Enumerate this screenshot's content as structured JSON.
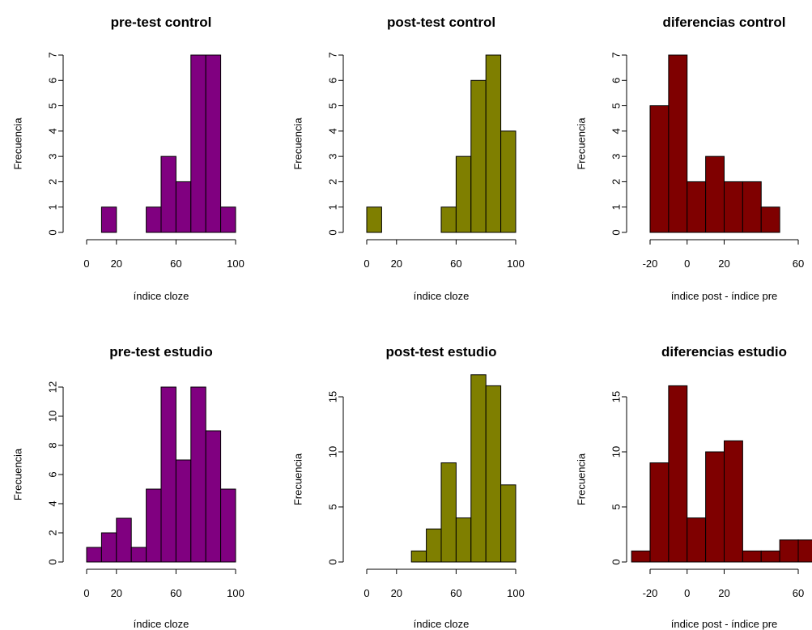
{
  "figure": {
    "colors": {
      "pre": "#800080",
      "post": "#7f7f00",
      "diff": "#7f0000"
    }
  },
  "chart_data": [
    {
      "type": "bar",
      "title": "pre-test control",
      "xlabel": "índice cloze",
      "ylabel": "Frecuencia",
      "color_key": "pre",
      "bin_edges": [
        10,
        20,
        30,
        40,
        50,
        60,
        70,
        80,
        90,
        100
      ],
      "values": [
        1,
        0,
        0,
        1,
        3,
        2,
        7,
        7,
        1
      ],
      "xlim": [
        0,
        100
      ],
      "ylim": [
        0,
        7
      ],
      "xticks": [
        0,
        20,
        60,
        100
      ],
      "yticks": [
        0,
        1,
        2,
        3,
        4,
        5,
        6,
        7
      ]
    },
    {
      "type": "bar",
      "title": "post-test control",
      "xlabel": "índice cloze",
      "ylabel": "Frecuencia",
      "color_key": "post",
      "bin_edges": [
        0,
        10,
        20,
        30,
        40,
        50,
        60,
        70,
        80,
        90,
        100
      ],
      "values": [
        1,
        0,
        0,
        0,
        0,
        1,
        3,
        6,
        7,
        4
      ],
      "xlim": [
        0,
        100
      ],
      "ylim": [
        0,
        7
      ],
      "xticks": [
        0,
        20,
        60,
        100
      ],
      "yticks": [
        0,
        1,
        2,
        3,
        4,
        5,
        6,
        7
      ]
    },
    {
      "type": "bar",
      "title": "diferencias control",
      "xlabel": "índice post - índice pre",
      "ylabel": "Frecuencia",
      "color_key": "diff",
      "bin_edges": [
        -20,
        -10,
        0,
        10,
        20,
        30,
        40,
        50
      ],
      "values": [
        5,
        7,
        2,
        3,
        2,
        2,
        1
      ],
      "xlim": [
        -20,
        60
      ],
      "ylim": [
        0,
        7
      ],
      "xticks": [
        -20,
        0,
        20,
        60
      ],
      "yticks": [
        0,
        1,
        2,
        3,
        4,
        5,
        6,
        7
      ]
    },
    {
      "type": "bar",
      "title": "pre-test estudio",
      "xlabel": "índice cloze",
      "ylabel": "Frecuencia",
      "color_key": "pre",
      "bin_edges": [
        0,
        10,
        20,
        30,
        40,
        50,
        60,
        70,
        80,
        90,
        100
      ],
      "values": [
        1,
        2,
        3,
        1,
        5,
        12,
        7,
        12,
        9,
        5
      ],
      "xlim": [
        0,
        100
      ],
      "ylim": [
        0,
        12
      ],
      "xticks": [
        0,
        20,
        60,
        100
      ],
      "yticks": [
        0,
        2,
        4,
        6,
        8,
        10,
        12
      ]
    },
    {
      "type": "bar",
      "title": "post-test estudio",
      "xlabel": "índice cloze",
      "ylabel": "Frecuencia",
      "color_key": "post",
      "bin_edges": [
        30,
        40,
        50,
        60,
        70,
        80,
        90,
        100
      ],
      "values": [
        1,
        3,
        9,
        4,
        17,
        16,
        7
      ],
      "xlim": [
        0,
        100
      ],
      "ylim": [
        0,
        15
      ],
      "xticks": [
        0,
        20,
        60,
        100
      ],
      "yticks": [
        0,
        5,
        10,
        15
      ]
    },
    {
      "type": "bar",
      "title": "diferencias estudio",
      "xlabel": "índice post - índice pre",
      "ylabel": "Frecuencia",
      "color_key": "diff",
      "bin_edges": [
        -30,
        -20,
        -10,
        0,
        10,
        20,
        30,
        40,
        50,
        60,
        70
      ],
      "values": [
        1,
        9,
        16,
        4,
        10,
        11,
        1,
        1,
        2,
        2
      ],
      "xlim": [
        -20,
        60
      ],
      "ylim": [
        0,
        15
      ],
      "xticks": [
        -20,
        0,
        20,
        60
      ],
      "yticks": [
        0,
        5,
        10,
        15
      ]
    }
  ]
}
